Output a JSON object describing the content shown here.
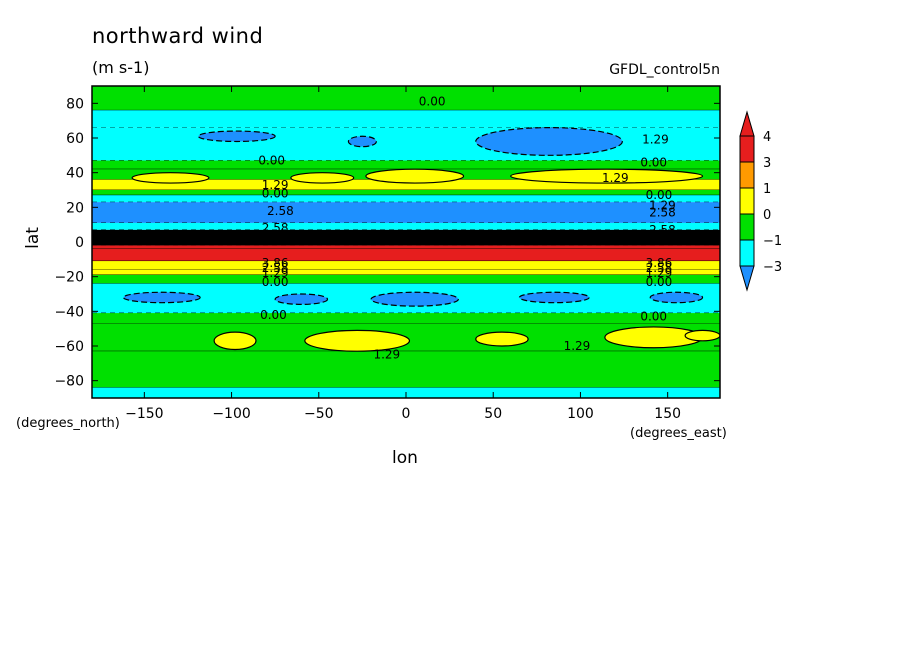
{
  "header": {
    "title": "northward wind",
    "units": "(m s-1)",
    "dataset": "GFDL_control5n"
  },
  "axes": {
    "ylabel": "lat",
    "xlabel": "lon",
    "x_units": "(degrees_east)",
    "y_units": "(degrees_north)"
  },
  "chart_data": {
    "type": "heatmap",
    "title": "northward wind",
    "units": "(m s-1)",
    "xlabel": "lon",
    "ylabel": "lat",
    "xlim": [
      -180,
      180
    ],
    "ylim": [
      -90,
      90
    ],
    "x_ticks": [
      -150,
      -100,
      -50,
      0,
      50,
      100,
      150
    ],
    "y_ticks": [
      -80,
      -60,
      -40,
      -20,
      0,
      20,
      40,
      60,
      80
    ],
    "colorbar": {
      "levels": [
        -3,
        -1,
        0,
        1,
        3,
        4
      ],
      "tick_labels": [
        "4",
        "3",
        "1",
        "0",
        "-1",
        "-3"
      ],
      "colors": [
        "#e61e1e",
        "#ff9a00",
        "#ffff00",
        "#00e000",
        "#00ffff",
        "#1e90ff"
      ],
      "extend": "both"
    },
    "zonal_bands": [
      {
        "lat": [
          76,
          90
        ],
        "value": 0.5
      },
      {
        "lat": [
          66,
          76
        ],
        "value": -0.6
      },
      {
        "lat": [
          47,
          66
        ],
        "value": -0.8
      },
      {
        "lat": [
          42,
          47
        ],
        "value": 0.3
      },
      {
        "lat": [
          36,
          42
        ],
        "value": 0.8
      },
      {
        "lat": [
          30,
          36
        ],
        "value": 1.5
      },
      {
        "lat": [
          27,
          30
        ],
        "value": 0.5
      },
      {
        "lat": [
          23,
          27
        ],
        "value": -0.5
      },
      {
        "lat": [
          11,
          23
        ],
        "value": -2.6
      },
      {
        "lat": [
          7,
          11
        ],
        "value": -0.5
      },
      {
        "lat": [
          -2,
          7
        ],
        "value": -6.0
      },
      {
        "lat": [
          -4,
          -2
        ],
        "value": 5.0
      },
      {
        "lat": [
          -11,
          -4
        ],
        "value": 4.2
      },
      {
        "lat": [
          -16,
          -11
        ],
        "value": 2.5
      },
      {
        "lat": [
          -19,
          -16
        ],
        "value": 1.5
      },
      {
        "lat": [
          -24,
          -19
        ],
        "value": 0.5
      },
      {
        "lat": [
          -41,
          -24
        ],
        "value": -0.6
      },
      {
        "lat": [
          -47,
          -41
        ],
        "value": 0.5
      },
      {
        "lat": [
          -63,
          -47
        ],
        "value": 0.9
      },
      {
        "lat": [
          -84,
          -63
        ],
        "value": 0.5
      },
      {
        "lat": [
          -90,
          -84
        ],
        "value": -0.4
      }
    ],
    "blobs": [
      {
        "lon": 82,
        "lat": 58,
        "rx": 42,
        "ry": 8,
        "value": -1.6
      },
      {
        "lon": -97,
        "lat": 61,
        "rx": 22,
        "ry": 3,
        "value": -1.4
      },
      {
        "lon": -25,
        "lat": 58,
        "rx": 8,
        "ry": 3,
        "value": -1.3
      },
      {
        "lon": -48,
        "lat": 37,
        "rx": 18,
        "ry": 3,
        "value": 1.5
      },
      {
        "lon": -135,
        "lat": 37,
        "rx": 22,
        "ry": 3,
        "value": 1.5
      },
      {
        "lon": 5,
        "lat": 38,
        "rx": 28,
        "ry": 4,
        "value": 1.5
      },
      {
        "lon": 115,
        "lat": 38,
        "rx": 55,
        "ry": 4,
        "value": 1.5
      },
      {
        "lon": -140,
        "lat": -32,
        "rx": 22,
        "ry": 3,
        "value": -1.4
      },
      {
        "lon": -60,
        "lat": -33,
        "rx": 15,
        "ry": 3,
        "value": -1.3
      },
      {
        "lon": 5,
        "lat": -33,
        "rx": 25,
        "ry": 4,
        "value": -1.4
      },
      {
        "lon": 85,
        "lat": -32,
        "rx": 20,
        "ry": 3,
        "value": -1.3
      },
      {
        "lon": 155,
        "lat": -32,
        "rx": 15,
        "ry": 3,
        "value": -1.3
      },
      {
        "lon": -98,
        "lat": -57,
        "rx": 12,
        "ry": 5,
        "value": 1.5
      },
      {
        "lon": -28,
        "lat": -57,
        "rx": 30,
        "ry": 6,
        "value": 1.5
      },
      {
        "lon": 55,
        "lat": -56,
        "rx": 15,
        "ry": 4,
        "value": 1.5
      },
      {
        "lon": 142,
        "lat": -55,
        "rx": 28,
        "ry": 6,
        "value": 1.5
      },
      {
        "lon": 170,
        "lat": -54,
        "rx": 10,
        "ry": 3,
        "value": 1.5
      }
    ],
    "contour_labels": [
      {
        "text": "0.00",
        "lon": 15,
        "lat": 81
      },
      {
        "text": "1.29",
        "lon": 143,
        "lat": 59
      },
      {
        "text": "0.00",
        "lon": -77,
        "lat": 47
      },
      {
        "text": "0.00",
        "lon": 142,
        "lat": 46
      },
      {
        "text": "1.29",
        "lon": -75,
        "lat": 33
      },
      {
        "text": "1.29",
        "lon": 120,
        "lat": 37
      },
      {
        "text": "0.00",
        "lon": -75,
        "lat": 28
      },
      {
        "text": "0.00",
        "lon": 145,
        "lat": 27
      },
      {
        "text": "2.58",
        "lon": -72,
        "lat": 18
      },
      {
        "text": "2.58",
        "lon": 147,
        "lat": 17
      },
      {
        "text": "1.29",
        "lon": 147,
        "lat": 21
      },
      {
        "text": "2.58",
        "lon": -75,
        "lat": 8
      },
      {
        "text": "2.58",
        "lon": 147,
        "lat": 7
      },
      {
        "text": "3.86",
        "lon": -75,
        "lat": -12
      },
      {
        "text": "3.86",
        "lon": 145,
        "lat": -12
      },
      {
        "text": "2.58",
        "lon": -75,
        "lat": -15
      },
      {
        "text": "2.58",
        "lon": 145,
        "lat": -15
      },
      {
        "text": "1.29",
        "lon": -75,
        "lat": -18
      },
      {
        "text": "1.29",
        "lon": 145,
        "lat": -18
      },
      {
        "text": "0.00",
        "lon": -75,
        "lat": -23
      },
      {
        "text": "0.00",
        "lon": 145,
        "lat": -23
      },
      {
        "text": "0.00",
        "lon": -76,
        "lat": -42
      },
      {
        "text": "0.00",
        "lon": 142,
        "lat": -43
      },
      {
        "text": "1.29",
        "lon": -11,
        "lat": -65
      },
      {
        "text": "1.29",
        "lon": 98,
        "lat": -60
      }
    ]
  }
}
